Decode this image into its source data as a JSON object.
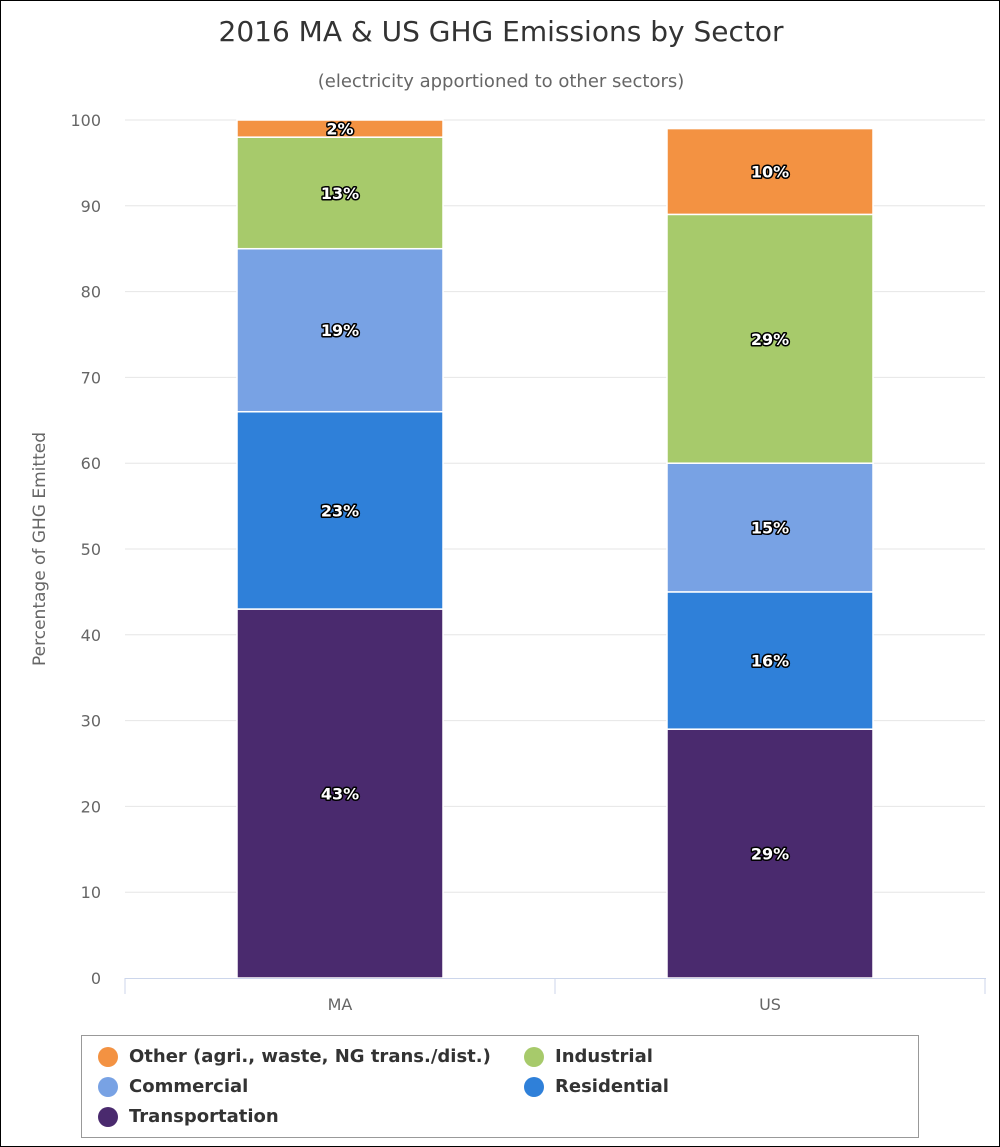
{
  "chart_data": {
    "type": "bar",
    "stacked": true,
    "title": "2016 MA & US GHG Emissions by Sector",
    "subtitle": "(electricity apportioned to other sectors)",
    "xlabel": "",
    "ylabel": "Percentage of GHG Emitted",
    "categories": [
      "MA",
      "US"
    ],
    "ylim": [
      0,
      100
    ],
    "yticks": [
      0,
      10,
      20,
      30,
      40,
      50,
      60,
      70,
      80,
      90,
      100
    ],
    "grid": true,
    "legend_position": "bottom",
    "series": [
      {
        "name": "Transportation",
        "color": "#4a2a6e",
        "values": [
          43,
          29
        ],
        "labels": [
          "43%",
          "29%"
        ]
      },
      {
        "name": "Residential",
        "color": "#2f80d9",
        "values": [
          23,
          16
        ],
        "labels": [
          "23%",
          "16%"
        ]
      },
      {
        "name": "Commercial",
        "color": "#78a2e4",
        "values": [
          19,
          15
        ],
        "labels": [
          "19%",
          "15%"
        ]
      },
      {
        "name": "Industrial",
        "color": "#a7ca6b",
        "values": [
          13,
          29
        ],
        "labels": [
          "13%",
          "29%"
        ]
      },
      {
        "name": "Other (agri., waste, NG trans./dist.)",
        "color": "#f39242",
        "values": [
          2,
          10
        ],
        "labels": [
          "2%",
          "10%"
        ]
      }
    ],
    "legend_order": [
      "Other (agri., waste, NG trans./dist.)",
      "Industrial",
      "Commercial",
      "Residential",
      "Transportation"
    ]
  }
}
